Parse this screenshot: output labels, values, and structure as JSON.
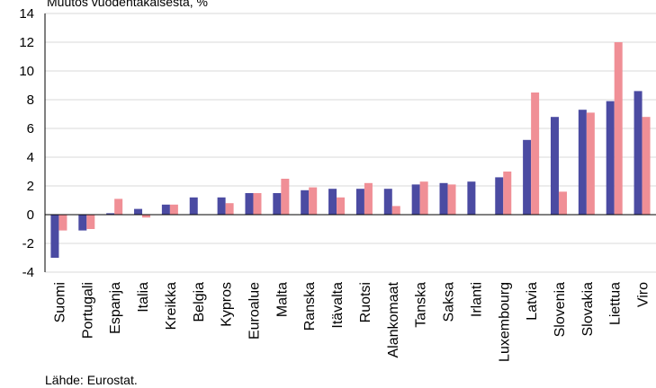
{
  "chart_data": {
    "type": "bar",
    "subtitle": "Muutos vuodentakaisesta, %",
    "source": "Lähde: Eurostat.",
    "categories": [
      "Suomi",
      "Portugali",
      "Espanja",
      "Italia",
      "Kreikka",
      "Belgia",
      "Kypros",
      "Euroalue",
      "Malta",
      "Ranska",
      "Itävalta",
      "Ruotsi",
      "Alankomaat",
      "Tanska",
      "Saksa",
      "Irlanti",
      "Luxembourg",
      "Latvia",
      "Slovenia",
      "Slovakia",
      "Liettua",
      "Viro"
    ],
    "series": [
      {
        "color": "#4b4ba2",
        "values": [
          -3.0,
          -1.1,
          0.1,
          0.4,
          0.7,
          1.2,
          1.2,
          1.5,
          1.5,
          1.7,
          1.8,
          1.8,
          1.8,
          2.1,
          2.2,
          2.3,
          2.6,
          5.2,
          6.8,
          7.3,
          7.9,
          8.6
        ]
      },
      {
        "color": "#f08f96",
        "values": [
          -1.1,
          -1.0,
          1.1,
          -0.2,
          0.7,
          null,
          0.8,
          1.5,
          2.5,
          1.9,
          1.2,
          2.2,
          0.6,
          2.3,
          2.1,
          null,
          3.0,
          8.5,
          1.6,
          7.1,
          12.0,
          6.8
        ]
      }
    ],
    "ylim": [
      -4,
      14
    ],
    "yticks": [
      -4,
      -2,
      0,
      2,
      4,
      6,
      8,
      10,
      12,
      14
    ],
    "grid": true
  }
}
